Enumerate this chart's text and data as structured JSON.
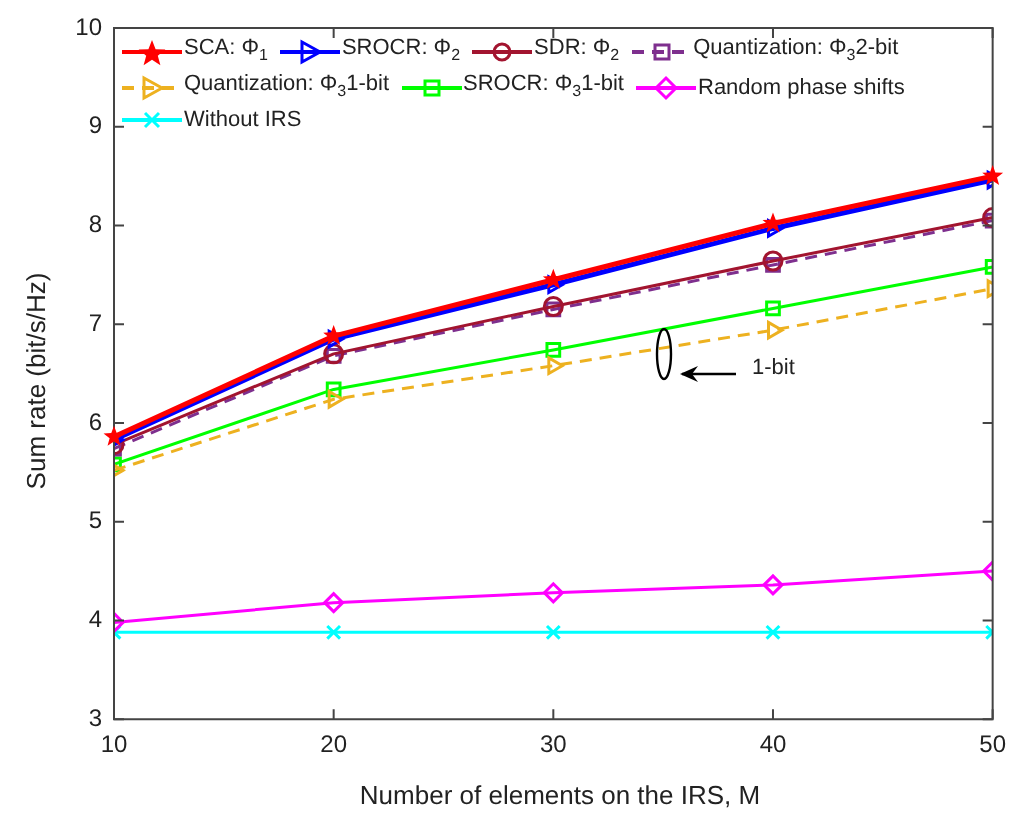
{
  "chart_data": {
    "type": "line",
    "xlabel": "Number of elements on the IRS, M",
    "ylabel": "Sum rate (bit/s/Hz)",
    "x": [
      10,
      20,
      30,
      40,
      50
    ],
    "xlim": [
      10,
      50
    ],
    "xticks": [
      10,
      20,
      30,
      40,
      50
    ],
    "ylim": [
      3,
      10
    ],
    "yticks": [
      3,
      4,
      5,
      6,
      7,
      8,
      9,
      10
    ],
    "grid": false,
    "legend": "top",
    "annotations": [
      "1-bit"
    ],
    "series": [
      {
        "name": "SCA: Φ$_{1}$",
        "color": "#ff0000",
        "marker": "star",
        "line_style": "solid",
        "values": [
          5.86,
          6.88,
          7.45,
          8.02,
          8.5
        ]
      },
      {
        "name": "SROCR: Φ$_{2}$",
        "color": "#0000ff",
        "marker": "triangle",
        "line_style": "solid",
        "values": [
          5.83,
          6.85,
          7.4,
          7.97,
          8.46
        ]
      },
      {
        "name": "SDR: Φ$_{2}$",
        "color": "#a2142f",
        "marker": "circle",
        "line_style": "solid",
        "values": [
          5.78,
          6.7,
          7.18,
          7.64,
          8.08
        ]
      },
      {
        "name": "Quantization: Φ$_{3}$2-bit",
        "color": "#7e2f8e",
        "marker": "square",
        "line_style": "dashed",
        "values": [
          5.74,
          6.68,
          7.15,
          7.6,
          8.05
        ]
      },
      {
        "name": "Quantization: Φ$_{3}$1-bit",
        "color": "#edb120",
        "marker": "triangle",
        "line_style": "dashed",
        "values": [
          5.52,
          6.24,
          6.58,
          6.94,
          7.36
        ]
      },
      {
        "name": "SROCR: Φ$_{3}$1-bit",
        "color": "#00ff00",
        "marker": "square",
        "line_style": "solid",
        "values": [
          5.58,
          6.34,
          6.74,
          7.16,
          7.58
        ]
      },
      {
        "name": "Random phase shifts",
        "color": "#ff00ff",
        "marker": "diamond",
        "line_style": "solid",
        "values": [
          3.98,
          4.18,
          4.28,
          4.36,
          4.5
        ]
      },
      {
        "name": "Without IRS",
        "color": "#00ffff",
        "marker": "cross",
        "line_style": "solid",
        "values": [
          3.88,
          3.88,
          3.88,
          3.88,
          3.88
        ]
      }
    ]
  }
}
